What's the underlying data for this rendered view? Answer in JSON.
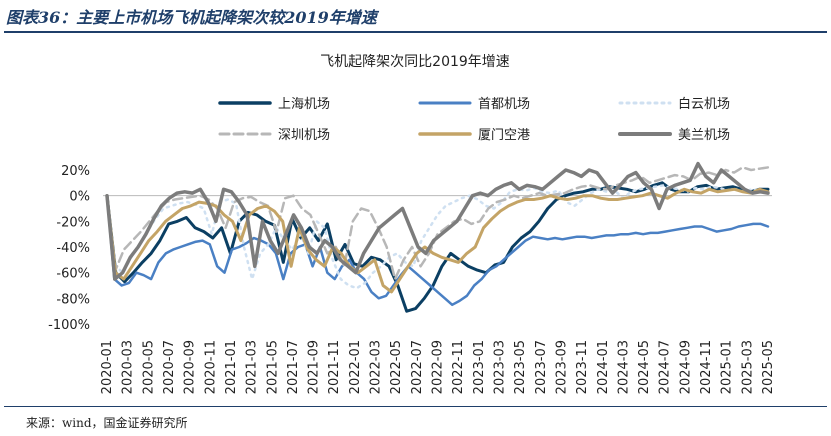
{
  "caption": "图表36：主要上市机场飞机起降架次较2019年增速",
  "source": "来源：wind，国金证券研究所",
  "chart_data": {
    "type": "line",
    "title": "飞机起降架次同比2019年增速",
    "xlabel": "",
    "ylabel": "",
    "ylim": [
      -100,
      20
    ],
    "yticks": [
      "20%",
      "0%",
      "-20%",
      "-40%",
      "-60%",
      "-80%",
      "-100%"
    ],
    "ytick_values": [
      20,
      0,
      -20,
      -40,
      -60,
      -80,
      -100
    ],
    "grid": false,
    "legend": "top",
    "xtick_labels": [
      "2020-01",
      "2020-03",
      "2020-05",
      "2020-07",
      "2020-09",
      "2020-11",
      "2021-01",
      "2021-03",
      "2021-05",
      "2021-07",
      "2021-09",
      "2021-11",
      "2022-01",
      "2022-03",
      "2022-05",
      "2022-07",
      "2022-09",
      "2022-11",
      "2023-01",
      "2023-03",
      "2023-05",
      "2023-07",
      "2023-09",
      "2023-11",
      "2024-01",
      "2024-03",
      "2024-05",
      "2024-07",
      "2024-09",
      "2024-11",
      "2025-01",
      "2025-03",
      "2025-05"
    ],
    "series": [
      {
        "name": "上海机场",
        "color": "#0b3f63",
        "dash": "",
        "width": 3,
        "values": [
          0,
          -60,
          -67,
          -60,
          -52,
          -45,
          -35,
          -22,
          -20,
          -17,
          -25,
          -28,
          -33,
          -25,
          -45,
          -20,
          -13,
          -15,
          -20,
          -23,
          -52,
          -18,
          -33,
          -25,
          -35,
          -22,
          -50,
          -38,
          -53,
          -55,
          -48,
          -50,
          -55,
          -70,
          -90,
          -88,
          -80,
          -70,
          -55,
          -45,
          -50,
          -55,
          -58,
          -60,
          -54,
          -52,
          -40,
          -33,
          -28,
          -20,
          -10,
          -3,
          0,
          2,
          3,
          5,
          5,
          7,
          6,
          5,
          3,
          5,
          8,
          10,
          5,
          3,
          3,
          7,
          8,
          5,
          6,
          7,
          5,
          3,
          5,
          5
        ]
      },
      {
        "name": "首都机场",
        "color": "#4a80c4",
        "dash": "",
        "width": 2.5,
        "values": [
          0,
          -65,
          -70,
          -68,
          -60,
          -62,
          -65,
          -52,
          -45,
          -42,
          -40,
          -38,
          -36,
          -35,
          -38,
          -55,
          -60,
          -42,
          -40,
          -37,
          -33,
          -35,
          -38,
          -45,
          -65,
          -45,
          -40,
          -38,
          -55,
          -40,
          -60,
          -65,
          -55,
          -50,
          -60,
          -65,
          -75,
          -80,
          -78,
          -70,
          -62,
          -55,
          -60,
          -65,
          -70,
          -75,
          -80,
          -85,
          -82,
          -78,
          -70,
          -65,
          -58,
          -55,
          -50,
          -45,
          -40,
          -35,
          -32,
          -33,
          -34,
          -33,
          -34,
          -33,
          -32,
          -32,
          -33,
          -32,
          -31,
          -31,
          -30,
          -30,
          -29,
          -30,
          -29,
          -29,
          -28,
          -27,
          -26,
          -25,
          -24,
          -24,
          -26,
          -28,
          -27,
          -26,
          -24,
          -23,
          -22,
          -22,
          -24
        ]
      },
      {
        "name": "白云机场",
        "color": "#cfe0f1",
        "dash": "2,5",
        "width": 2.5,
        "values": [
          0,
          -55,
          -60,
          -48,
          -38,
          -28,
          -18,
          -10,
          -8,
          -6,
          -5,
          -7,
          -10,
          -30,
          -5,
          -3,
          -6,
          -40,
          -65,
          -45,
          -38,
          -25,
          -35,
          -42,
          -30,
          -45,
          -20,
          -25,
          -50,
          -65,
          -70,
          -72,
          -68,
          -60,
          -55,
          -48,
          -45,
          -52,
          -55,
          -35,
          -25,
          -15,
          -8,
          -5,
          -2,
          0,
          -3,
          -8,
          -10,
          -5,
          3,
          5,
          4,
          6,
          3,
          2,
          4,
          -5,
          -8,
          -3,
          2,
          5,
          3,
          4,
          -2,
          3,
          5,
          6,
          7,
          8,
          6,
          5,
          3,
          6,
          5,
          7,
          6,
          4,
          5,
          3,
          5,
          4,
          3
        ]
      },
      {
        "name": "深圳机场",
        "color": "#b7b7b7",
        "dash": "9,5",
        "width": 2.5,
        "values": [
          0,
          -58,
          -42,
          -35,
          -28,
          -20,
          -12,
          -5,
          -3,
          -2,
          -1,
          0,
          -3,
          -10,
          -25,
          -5,
          -2,
          -1,
          -5,
          -8,
          -28,
          -2,
          0,
          -10,
          -15,
          -30,
          -45,
          -40,
          -55,
          -20,
          -10,
          -12,
          -25,
          -40,
          -65,
          -50,
          -40,
          -55,
          -45,
          -30,
          -25,
          -20,
          -18,
          -22,
          -20,
          -10,
          -5,
          -3,
          0,
          -2,
          0,
          2,
          0,
          1,
          2,
          5,
          7,
          8,
          6,
          5,
          8,
          10,
          12,
          15,
          10,
          12,
          14,
          16,
          15,
          12,
          17,
          18,
          16,
          20,
          18,
          22,
          20,
          21,
          22
        ]
      },
      {
        "name": "厦门空港",
        "color": "#c4a466",
        "dash": "",
        "width": 3,
        "values": [
          0,
          -60,
          -65,
          -55,
          -45,
          -35,
          -28,
          -20,
          -15,
          -10,
          -8,
          -5,
          -6,
          -8,
          -15,
          -20,
          -35,
          -15,
          -10,
          -8,
          -12,
          -20,
          -55,
          -25,
          -42,
          -50,
          -55,
          -40,
          -45,
          -55,
          -60,
          -55,
          -50,
          -70,
          -75,
          -65,
          -55,
          -45,
          -40,
          -45,
          -48,
          -50,
          -52,
          -45,
          -40,
          -25,
          -18,
          -12,
          -8,
          -5,
          -3,
          -3,
          -2,
          0,
          -2,
          -3,
          -2,
          0,
          0,
          -2,
          -3,
          -3,
          -2,
          -1,
          0,
          2,
          0,
          -2,
          2,
          5,
          3,
          2,
          5,
          3,
          4,
          5,
          3,
          2,
          5,
          3
        ]
      },
      {
        "name": "美兰机场",
        "color": "#7c7c7c",
        "dash": "",
        "width": 3.5,
        "values": [
          0,
          -65,
          -60,
          -48,
          -40,
          -30,
          -18,
          -8,
          -2,
          2,
          3,
          2,
          5,
          -5,
          -20,
          5,
          3,
          -5,
          -15,
          -55,
          -20,
          -35,
          -45,
          -30,
          -15,
          -25,
          -40,
          -45,
          -35,
          -40,
          -50,
          -55,
          -60,
          -45,
          -35,
          -25,
          -20,
          -15,
          -10,
          -25,
          -40,
          -45,
          -35,
          -30,
          -25,
          -20,
          -10,
          0,
          2,
          0,
          5,
          8,
          10,
          5,
          8,
          7,
          5,
          10,
          15,
          20,
          18,
          15,
          20,
          18,
          10,
          2,
          8,
          15,
          18,
          10,
          5,
          -10,
          5,
          8,
          10,
          12,
          25,
          15,
          10,
          20,
          15,
          10,
          5,
          2,
          3,
          2
        ]
      }
    ]
  }
}
